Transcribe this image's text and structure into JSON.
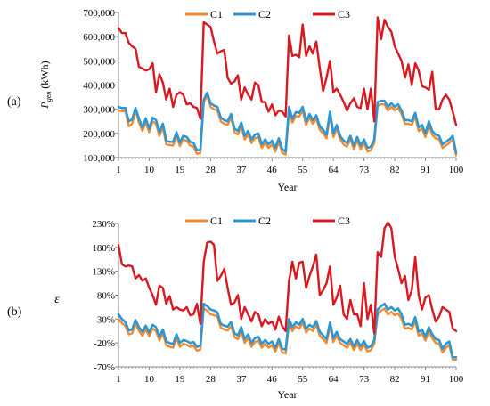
{
  "chart_data": [
    {
      "panel_label": "(a)",
      "type": "line",
      "title": "",
      "xlabel": "Year",
      "ylabel": "P",
      "ylabel_sub": "gen",
      "ylabel_unit": " (kWh)",
      "xlim": [
        1,
        100
      ],
      "ylim": [
        100000,
        700000
      ],
      "x_ticks": [
        1,
        10,
        19,
        28,
        37,
        46,
        55,
        64,
        73,
        82,
        91,
        100
      ],
      "y_ticks": [
        100000,
        200000,
        300000,
        400000,
        500000,
        600000,
        700000
      ],
      "y_tick_labels": [
        "100,000",
        "200,000",
        "300,000",
        "400,000",
        "500,000",
        "600,000",
        "700,000"
      ],
      "grid": false,
      "legend_position": "top-center",
      "x": [
        1,
        2,
        3,
        4,
        5,
        6,
        7,
        8,
        9,
        10,
        11,
        12,
        13,
        14,
        15,
        16,
        17,
        18,
        19,
        20,
        21,
        22,
        23,
        24,
        25,
        26,
        27,
        28,
        29,
        30,
        31,
        32,
        33,
        34,
        35,
        36,
        37,
        38,
        39,
        40,
        41,
        42,
        43,
        44,
        45,
        46,
        47,
        48,
        49,
        50,
        51,
        52,
        53,
        54,
        55,
        56,
        57,
        58,
        59,
        60,
        61,
        62,
        63,
        64,
        65,
        66,
        67,
        68,
        69,
        70,
        71,
        72,
        73,
        74,
        75,
        76,
        77,
        78,
        79,
        80,
        81,
        82,
        83,
        84,
        85,
        86,
        87,
        88,
        89,
        90,
        91,
        92,
        93,
        94,
        95,
        96,
        97,
        98,
        99,
        100
      ],
      "series": [
        {
          "name": "C1",
          "color": "#f28a2e",
          "values": [
            295000,
            292000,
            292000,
            230000,
            240000,
            295000,
            245000,
            210000,
            245000,
            205000,
            250000,
            240000,
            190000,
            225000,
            155000,
            152000,
            150000,
            190000,
            148000,
            175000,
            170000,
            150000,
            145000,
            115000,
            120000,
            330000,
            355000,
            310000,
            300000,
            295000,
            250000,
            240000,
            235000,
            265000,
            205000,
            195000,
            230000,
            175000,
            195000,
            160000,
            180000,
            185000,
            140000,
            160000,
            140000,
            155000,
            125000,
            165000,
            120000,
            112000,
            295000,
            245000,
            272000,
            270000,
            295000,
            235000,
            265000,
            240000,
            260000,
            215000,
            200000,
            180000,
            275000,
            185000,
            220000,
            175000,
            155000,
            145000,
            175000,
            135000,
            170000,
            135000,
            160000,
            125000,
            130000,
            160000,
            315000,
            320000,
            320000,
            295000,
            310000,
            295000,
            305000,
            280000,
            240000,
            240000,
            235000,
            270000,
            210000,
            220000,
            185000,
            235000,
            195000,
            180000,
            175000,
            140000,
            150000,
            160000,
            175000,
            110000
          ]
        },
        {
          "name": "C2",
          "color": "#2b97d4",
          "values": [
            310000,
            305000,
            305000,
            250000,
            258000,
            305000,
            260000,
            225000,
            262000,
            220000,
            265000,
            255000,
            205000,
            240000,
            170000,
            165000,
            165000,
            205000,
            162000,
            190000,
            185000,
            165000,
            160000,
            130000,
            132000,
            340000,
            368000,
            325000,
            315000,
            310000,
            265000,
            255000,
            250000,
            280000,
            220000,
            210000,
            245000,
            190000,
            210000,
            175000,
            195000,
            200000,
            155000,
            175000,
            155000,
            170000,
            140000,
            180000,
            135000,
            125000,
            310000,
            260000,
            288000,
            285000,
            310000,
            250000,
            280000,
            255000,
            275000,
            230000,
            215000,
            195000,
            290000,
            200000,
            235000,
            190000,
            170000,
            160000,
            190000,
            150000,
            185000,
            150000,
            175000,
            140000,
            145000,
            175000,
            330000,
            335000,
            335000,
            310000,
            325000,
            310000,
            320000,
            295000,
            255000,
            255000,
            250000,
            285000,
            225000,
            235000,
            200000,
            250000,
            210000,
            195000,
            190000,
            155000,
            165000,
            175000,
            190000,
            120000
          ]
        },
        {
          "name": "C3",
          "color": "#d71920",
          "values": [
            635000,
            615000,
            615000,
            575000,
            560000,
            550000,
            475000,
            468000,
            460000,
            465000,
            490000,
            370000,
            445000,
            410000,
            340000,
            385000,
            310000,
            360000,
            370000,
            360000,
            320000,
            325000,
            310000,
            305000,
            260000,
            660000,
            650000,
            640000,
            580000,
            530000,
            540000,
            545000,
            430000,
            405000,
            415000,
            440000,
            340000,
            390000,
            360000,
            340000,
            410000,
            400000,
            330000,
            330000,
            290000,
            320000,
            275000,
            295000,
            290000,
            270000,
            605000,
            520000,
            525000,
            515000,
            650000,
            520000,
            560000,
            530000,
            580000,
            470000,
            375000,
            430000,
            500000,
            370000,
            385000,
            360000,
            330000,
            295000,
            325000,
            345000,
            310000,
            305000,
            385000,
            300000,
            385000,
            250000,
            680000,
            590000,
            670000,
            640000,
            620000,
            560000,
            530000,
            500000,
            430000,
            485000,
            400000,
            490000,
            460000,
            395000,
            390000,
            380000,
            455000,
            300000,
            300000,
            340000,
            360000,
            340000,
            290000,
            235000
          ]
        }
      ]
    },
    {
      "panel_label": "(b)",
      "type": "line",
      "title": "",
      "xlabel": "Year",
      "ylabel": "ε",
      "xlim": [
        1,
        100
      ],
      "ylim": [
        -70,
        230
      ],
      "x_ticks": [
        1,
        10,
        19,
        28,
        37,
        46,
        55,
        64,
        73,
        82,
        91,
        100
      ],
      "y_ticks": [
        -70,
        -20,
        30,
        80,
        130,
        180,
        230
      ],
      "y_tick_labels": [
        "-70%",
        "-20%",
        "30%",
        "80%",
        "130%",
        "180%",
        "230%"
      ],
      "grid": false,
      "legend_position": "top-center",
      "x": [
        1,
        2,
        3,
        4,
        5,
        6,
        7,
        8,
        9,
        10,
        11,
        12,
        13,
        14,
        15,
        16,
        17,
        18,
        19,
        20,
        21,
        22,
        23,
        24,
        25,
        26,
        27,
        28,
        29,
        30,
        31,
        32,
        33,
        34,
        35,
        36,
        37,
        38,
        39,
        40,
        41,
        42,
        43,
        44,
        45,
        46,
        47,
        48,
        49,
        50,
        51,
        52,
        53,
        54,
        55,
        56,
        57,
        58,
        59,
        60,
        61,
        62,
        63,
        64,
        65,
        66,
        67,
        68,
        69,
        70,
        71,
        72,
        73,
        74,
        75,
        76,
        77,
        78,
        79,
        80,
        81,
        82,
        83,
        84,
        85,
        86,
        87,
        88,
        89,
        90,
        91,
        92,
        93,
        94,
        95,
        96,
        97,
        98,
        99,
        100
      ],
      "series": [
        {
          "name": "C1",
          "color": "#f28a2e",
          "values": [
            30,
            22,
            15,
            -2,
            0,
            20,
            5,
            -5,
            8,
            -6,
            10,
            5,
            -15,
            0,
            -25,
            -28,
            -30,
            -10,
            -28,
            -22,
            -24,
            -28,
            -26,
            -36,
            -34,
            52,
            48,
            40,
            38,
            35,
            12,
            8,
            6,
            15,
            -8,
            -12,
            5,
            -20,
            -10,
            -28,
            -18,
            -15,
            -30,
            -22,
            -30,
            -25,
            -38,
            -20,
            -40,
            -42,
            20,
            5,
            15,
            10,
            22,
            2,
            10,
            5,
            18,
            -5,
            -12,
            -20,
            15,
            -18,
            -5,
            -20,
            -25,
            -30,
            -20,
            -35,
            -22,
            -35,
            -24,
            -38,
            -35,
            -22,
            40,
            48,
            52,
            40,
            45,
            38,
            42,
            30,
            10,
            12,
            8,
            25,
            -5,
            0,
            -15,
            5,
            -10,
            -20,
            -22,
            -40,
            -30,
            -25,
            -55,
            -55
          ]
        },
        {
          "name": "C2",
          "color": "#2b97d4",
          "values": [
            40,
            30,
            24,
            6,
            8,
            28,
            13,
            3,
            16,
            2,
            18,
            13,
            -7,
            8,
            -17,
            -20,
            -22,
            -2,
            -20,
            -14,
            -16,
            -20,
            -18,
            -28,
            -26,
            62,
            57,
            50,
            48,
            44,
            20,
            16,
            14,
            24,
            0,
            -4,
            13,
            -12,
            -2,
            -20,
            -10,
            -7,
            -22,
            -14,
            -22,
            -17,
            -30,
            -12,
            -32,
            -34,
            30,
            13,
            23,
            18,
            30,
            10,
            18,
            13,
            26,
            3,
            -4,
            -12,
            23,
            -10,
            3,
            -12,
            -17,
            -22,
            -12,
            -27,
            -14,
            -27,
            -16,
            -30,
            -27,
            -14,
            50,
            57,
            62,
            50,
            55,
            48,
            52,
            40,
            18,
            20,
            16,
            34,
            3,
            8,
            -7,
            13,
            -2,
            -12,
            -14,
            -32,
            -22,
            -17,
            -50,
            -50
          ]
        },
        {
          "name": "C3",
          "color": "#d71920",
          "values": [
            185,
            145,
            140,
            142,
            140,
            115,
            122,
            110,
            115,
            95,
            80,
            60,
            100,
            95,
            62,
            78,
            50,
            55,
            50,
            48,
            55,
            38,
            40,
            62,
            20,
            150,
            190,
            192,
            185,
            110,
            120,
            135,
            95,
            60,
            65,
            80,
            30,
            55,
            40,
            25,
            45,
            40,
            15,
            30,
            20,
            25,
            8,
            35,
            15,
            5,
            110,
            150,
            115,
            148,
            150,
            95,
            120,
            140,
            165,
            80,
            90,
            105,
            140,
            60,
            75,
            100,
            40,
            30,
            70,
            40,
            40,
            15,
            105,
            30,
            60,
            0,
            170,
            160,
            220,
            232,
            220,
            160,
            135,
            105,
            120,
            70,
            90,
            160,
            80,
            50,
            75,
            80,
            50,
            25,
            35,
            55,
            50,
            45,
            10,
            5
          ]
        }
      ]
    }
  ]
}
